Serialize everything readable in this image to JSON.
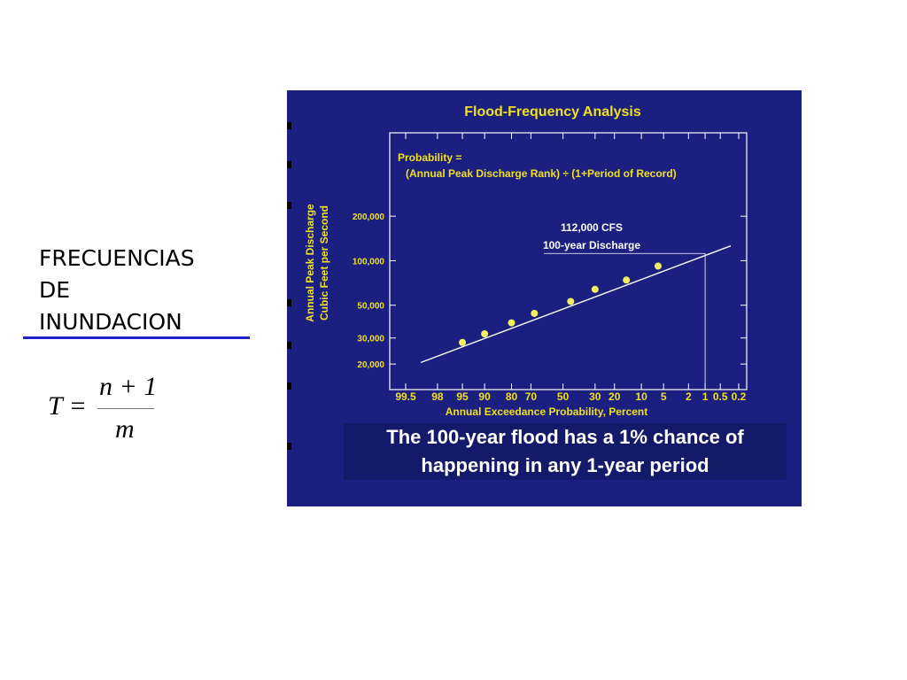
{
  "slide": {
    "title_lines": [
      "FRECUENCIAS",
      "DE",
      "INUNDACION"
    ],
    "formula": {
      "lhs": "T =",
      "numerator": "n + 1",
      "denominator": "m"
    }
  },
  "colors": {
    "panel_bg": "#1a1f80",
    "title_color": "#f0e020",
    "axis_text": "#f0e020",
    "data_points": "#f5f060",
    "fit_line": "#ffffff",
    "underline": "#1e22c8"
  },
  "chart_data": {
    "type": "scatter",
    "title": "Flood-Frequency Analysis",
    "xlabel": "Annual Exceedance Probability, Percent",
    "ylabel": "Annual Peak Discharge Cubic Feet per Second",
    "ylabel_lines": [
      "Annual Peak Discharge",
      "Cubic Feet per Second"
    ],
    "x_scale": "normal-probability (reversed)",
    "y_scale": "log",
    "x_ticks": [
      99.5,
      98,
      95,
      90,
      80,
      70,
      50,
      30,
      20,
      10,
      5,
      2,
      1,
      0.5,
      0.2
    ],
    "x_tick_labels": [
      "99.5",
      "98",
      "95",
      "90",
      "80",
      "70",
      "50",
      "30",
      "20",
      "10",
      "5",
      "2",
      "1",
      "0.5",
      "0.2"
    ],
    "y_ticks": [
      20000,
      30000,
      50000,
      100000,
      200000
    ],
    "y_tick_labels": [
      "20,000",
      "30,000",
      "50,000",
      "100,000",
      "200,000"
    ],
    "xlim": [
      99.5,
      0.2
    ],
    "ylim": [
      15000,
      250000
    ],
    "formula_lines": [
      "Probability =",
      "(Annual Peak Discharge Rank) ÷  (1+Period of Record)"
    ],
    "annotation": {
      "lines": [
        "112,000 CFS",
        "100-year Discharge"
      ],
      "x": 1,
      "y": 112000
    },
    "points": [
      {
        "x": 95,
        "y": 28000
      },
      {
        "x": 90,
        "y": 32000
      },
      {
        "x": 80,
        "y": 38000
      },
      {
        "x": 68,
        "y": 44000
      },
      {
        "x": 45,
        "y": 53000
      },
      {
        "x": 30,
        "y": 64000
      },
      {
        "x": 15,
        "y": 74000
      },
      {
        "x": 6,
        "y": 92000
      }
    ],
    "fit_line": [
      {
        "x": 99,
        "y": 20500
      },
      {
        "x": 0.3,
        "y": 126000
      }
    ],
    "caption_lines": [
      "The 100-year flood has a 1% chance of",
      "happening in any 1-year period"
    ]
  }
}
